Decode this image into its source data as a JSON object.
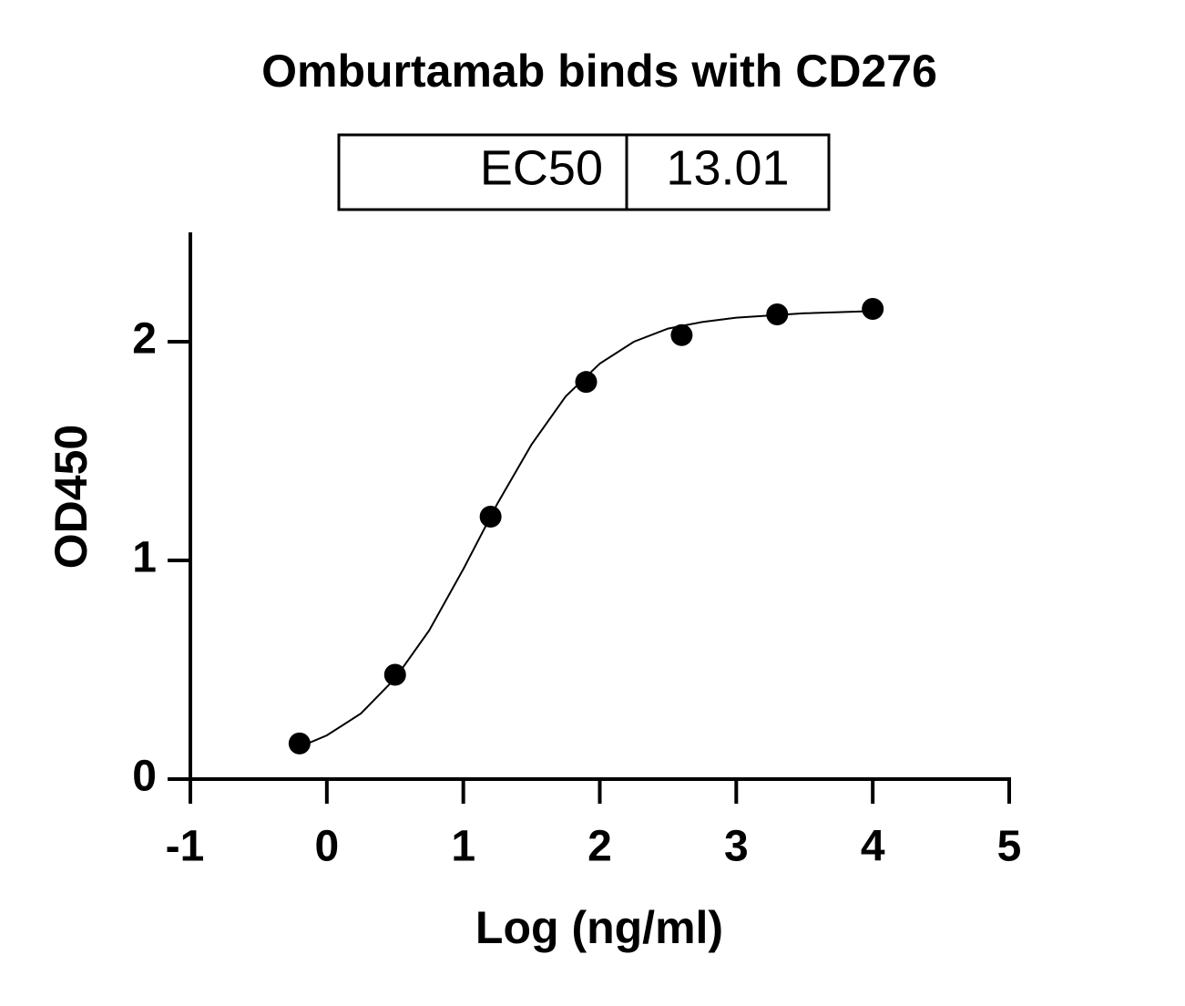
{
  "chart_data": {
    "type": "scatter",
    "title": "Omburtamab binds with CD276",
    "ec50_table": {
      "label": "EC50",
      "value": 13.01
    },
    "x_label": "Log (ng/ml)",
    "y_label": "OD450",
    "x": [
      -0.2,
      0.5,
      1.2,
      1.9,
      2.6,
      3.3,
      4.0
    ],
    "values": [
      0.163,
      0.477,
      1.2,
      1.816,
      2.03,
      2.125,
      2.15
    ],
    "color": "#000000",
    "fit": {
      "x": [
        -0.2,
        0,
        0.25,
        0.5,
        0.75,
        1,
        1.25,
        1.5,
        1.75,
        2,
        2.25,
        2.5,
        2.75,
        3,
        3.5,
        4
      ],
      "values": [
        0.147,
        0.2,
        0.3,
        0.46,
        0.68,
        0.96,
        1.26,
        1.53,
        1.75,
        1.9,
        2.0,
        2.06,
        2.09,
        2.11,
        2.13,
        2.14
      ]
    },
    "xlim": [
      -1,
      5
    ],
    "ylim": [
      0,
      2.5
    ],
    "xticks": [
      -1,
      0,
      1,
      2,
      3,
      4,
      5
    ],
    "yticks": [
      0,
      1,
      2
    ]
  }
}
